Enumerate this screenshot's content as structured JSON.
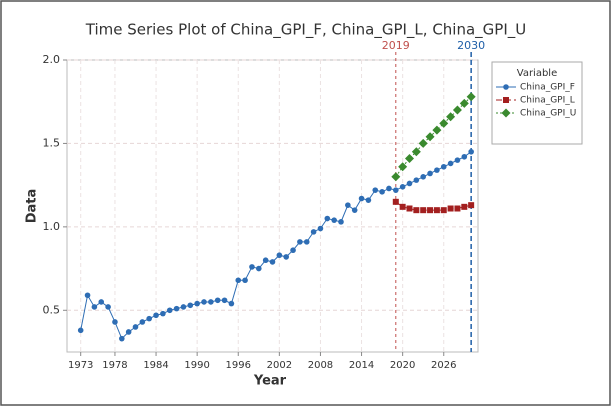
{
  "chart_data": {
    "type": "line",
    "title": "Time Series Plot of China_GPI_F, China_GPI_L, China_GPI_U",
    "x_label": "Year",
    "y_label": "Data",
    "xlim": [
      1971,
      2031
    ],
    "ylim": [
      0.25,
      2.0
    ],
    "xticks": [
      1973,
      1978,
      1984,
      1990,
      1996,
      2002,
      2008,
      2014,
      2020,
      2026
    ],
    "yticks": [
      0.5,
      {
        "value": 1,
        "label": "1.0"
      },
      1.5,
      {
        "value": 2,
        "label": "2.0"
      }
    ],
    "grid": true,
    "legend_title": "Variable",
    "legend_position": "right",
    "reference_lines": [
      {
        "value": 2019,
        "label": "2019",
        "color": "#c0504d"
      },
      {
        "value": 2030,
        "label": "2030",
        "color": "#1f5fa8"
      }
    ],
    "series": [
      {
        "name": "China_GPI_F",
        "color": "#2e6db4",
        "marker": "circle",
        "linestyle": "solid",
        "x": [
          1973,
          1974,
          1975,
          1976,
          1977,
          1978,
          1979,
          1980,
          1981,
          1982,
          1983,
          1984,
          1985,
          1986,
          1987,
          1988,
          1989,
          1990,
          1991,
          1992,
          1993,
          1994,
          1995,
          1996,
          1997,
          1998,
          1999,
          2000,
          2001,
          2002,
          2003,
          2004,
          2005,
          2006,
          2007,
          2008,
          2009,
          2010,
          2011,
          2012,
          2013,
          2014,
          2015,
          2016,
          2017,
          2018,
          2019,
          2020,
          2021,
          2022,
          2023,
          2024,
          2025,
          2026,
          2027,
          2028,
          2029,
          2030
        ],
        "values": [
          0.38,
          0.59,
          0.52,
          0.55,
          0.52,
          0.43,
          0.33,
          0.37,
          0.4,
          0.43,
          0.45,
          0.47,
          0.48,
          0.5,
          0.51,
          0.52,
          0.53,
          0.54,
          0.55,
          0.55,
          0.56,
          0.56,
          0.54,
          0.68,
          0.68,
          0.76,
          0.75,
          0.8,
          0.79,
          0.83,
          0.82,
          0.86,
          0.91,
          0.91,
          0.97,
          0.99,
          1.05,
          1.04,
          1.03,
          1.13,
          1.1,
          1.17,
          1.16,
          1.22,
          1.21,
          1.23,
          1.22,
          1.24,
          1.26,
          1.28,
          1.3,
          1.32,
          1.34,
          1.36,
          1.38,
          1.4,
          1.42,
          1.45
        ]
      },
      {
        "name": "China_GPI_L",
        "color": "#a31f1f",
        "marker": "square",
        "linestyle": "dashed",
        "x": [
          2019,
          2020,
          2021,
          2022,
          2023,
          2024,
          2025,
          2026,
          2027,
          2028,
          2029,
          2030
        ],
        "values": [
          1.15,
          1.12,
          1.11,
          1.1,
          1.1,
          1.1,
          1.1,
          1.1,
          1.11,
          1.11,
          1.12,
          1.13
        ]
      },
      {
        "name": "China_GPI_U",
        "color": "#3a8a2e",
        "marker": "diamond",
        "linestyle": "dotted",
        "x": [
          2019,
          2020,
          2021,
          2022,
          2023,
          2024,
          2025,
          2026,
          2027,
          2028,
          2029,
          2030
        ],
        "values": [
          1.3,
          1.36,
          1.41,
          1.45,
          1.5,
          1.54,
          1.58,
          1.62,
          1.66,
          1.7,
          1.74,
          1.78
        ]
      }
    ]
  }
}
